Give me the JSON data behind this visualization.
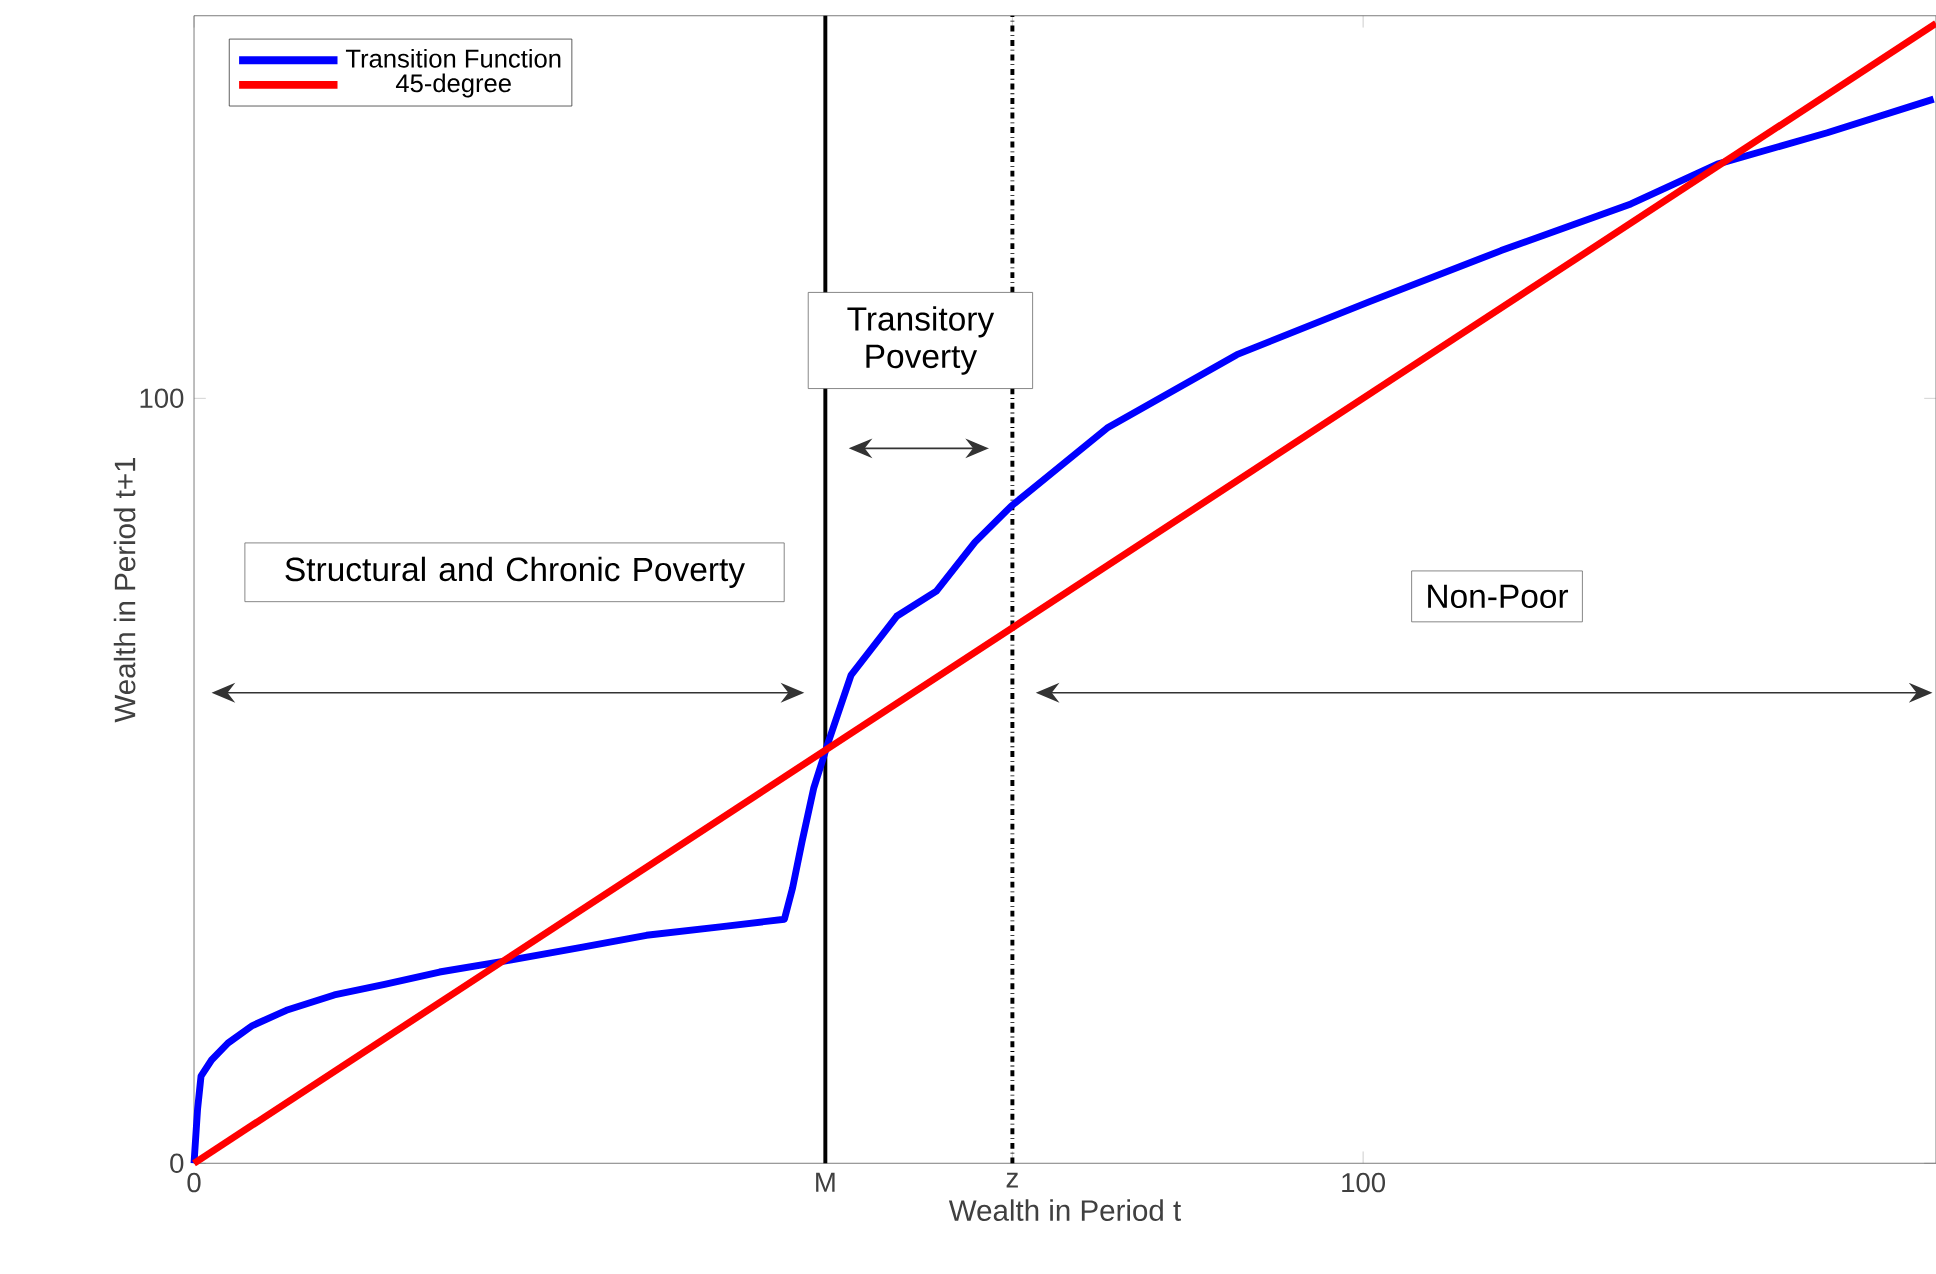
{
  "chart_data": {
    "type": "line",
    "xlabel": "Wealth in Period t",
    "ylabel": "Wealth in Period t+1",
    "xlim": [
      0,
      149
    ],
    "ylim": [
      0,
      150
    ],
    "xticks": [
      0,
      {
        "value": 54,
        "label": "M"
      },
      {
        "value": 70,
        "label": "z"
      },
      100
    ],
    "yticks": [
      0,
      100
    ],
    "legend": "top left",
    "series": [
      {
        "name": "Transition Function",
        "color": "#0000ff",
        "x": [
          0,
          0.3,
          0.6,
          1.5,
          2.9,
          5,
          7.9,
          12,
          16.3,
          21,
          26.8,
          33,
          38.7,
          45,
          50.5,
          51.2,
          52,
          53,
          54.2,
          56.2,
          60.1,
          63.5,
          66.8,
          69.9,
          74,
          78.1,
          89.2,
          100.5,
          111.8,
          122.9,
          130.3,
          139.7,
          148.8
        ],
        "values": [
          0,
          7,
          11.4,
          13.5,
          15.7,
          18,
          20,
          22,
          23.4,
          25,
          26.5,
          28.2,
          29.8,
          30.9,
          31.9,
          36,
          42,
          49,
          54.8,
          63.8,
          71.5,
          74.8,
          81.2,
          85.9,
          91,
          96.1,
          105.7,
          112.6,
          119.3,
          125.4,
          130.6,
          134.7,
          139.1
        ]
      },
      {
        "name": "45-degree",
        "color": "#ff0000",
        "x": [
          0,
          149
        ],
        "values": [
          0,
          149
        ]
      }
    ],
    "ref_lines": [
      {
        "axis": "x",
        "value": 54,
        "color": "#000000",
        "line_style": "solid"
      },
      {
        "axis": "x",
        "value": 70,
        "color": "#000000",
        "line_style": "dashdot"
      }
    ],
    "annotations": [
      "Structural and Chronic Poverty",
      "Transitory Poverty",
      "Non-Poor"
    ]
  }
}
